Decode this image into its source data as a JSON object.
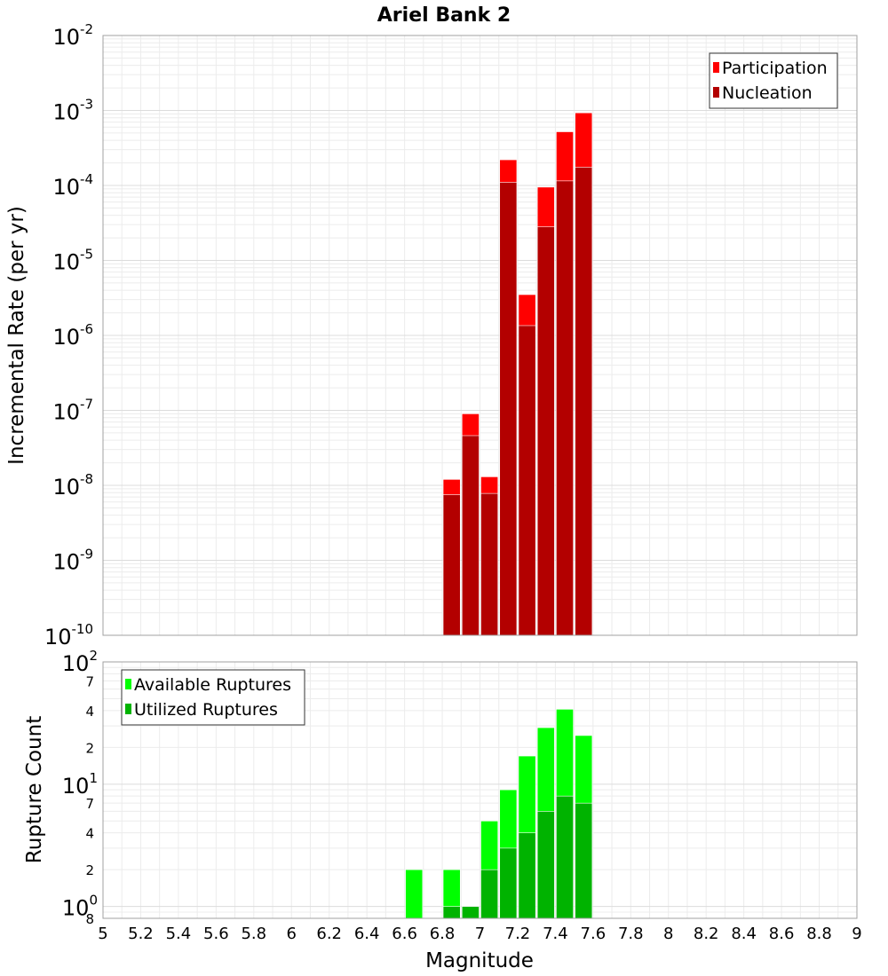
{
  "chart_data": [
    {
      "type": "bar",
      "title": "Ariel Bank 2",
      "xlabel": "",
      "ylabel": "Incremental Rate (per yr)",
      "yscale": "log",
      "ylim": [
        1e-10,
        0.01
      ],
      "xlim": [
        5,
        9
      ],
      "grid": true,
      "legend_position": "top-right",
      "y_ticks": [
        {
          "base": "10",
          "exp": "-10"
        },
        {
          "base": "10",
          "exp": "-9"
        },
        {
          "base": "10",
          "exp": "-8"
        },
        {
          "base": "10",
          "exp": "-7"
        },
        {
          "base": "10",
          "exp": "-6"
        },
        {
          "base": "10",
          "exp": "-5"
        },
        {
          "base": "10",
          "exp": "-4"
        },
        {
          "base": "10",
          "exp": "-3"
        },
        {
          "base": "10",
          "exp": "-2"
        }
      ],
      "bar_width": 0.1,
      "series": [
        {
          "name": "Participation",
          "color": "#ff0000",
          "x": [
            6.85,
            6.95,
            7.05,
            7.15,
            7.25,
            7.35,
            7.45,
            7.55
          ],
          "values": [
            1.2e-08,
            9e-08,
            1.3e-08,
            0.00022,
            3.5e-06,
            9.5e-05,
            0.00052,
            0.00093
          ]
        },
        {
          "name": "Nucleation",
          "color": "#b30000",
          "x": [
            6.85,
            6.95,
            7.05,
            7.15,
            7.25,
            7.35,
            7.45,
            7.55
          ],
          "values": [
            7.5e-09,
            4.6e-08,
            7.8e-09,
            0.00011,
            1.35e-06,
            2.8e-05,
            0.000115,
            0.000175
          ]
        }
      ]
    },
    {
      "type": "bar",
      "title": "",
      "xlabel": "Magnitude",
      "ylabel": "Rupture Count",
      "yscale": "log",
      "ylim": [
        0.8,
        100
      ],
      "xlim": [
        5,
        9
      ],
      "grid": true,
      "legend_position": "top-left",
      "x_ticks": [
        "5",
        "5.2",
        "5.4",
        "5.6",
        "5.8",
        "6",
        "6.2",
        "6.4",
        "6.6",
        "6.8",
        "7",
        "7.2",
        "7.4",
        "7.6",
        "7.8",
        "8",
        "8.2",
        "8.4",
        "8.6",
        "8.8",
        "9"
      ],
      "y_ticks": [
        {
          "base": "10",
          "exp": "2"
        },
        {
          "base": "10",
          "exp": "1"
        },
        {
          "base": "10",
          "exp": "0"
        }
      ],
      "y_minor_ticks": [
        {
          "label": "7",
          "value": 70
        },
        {
          "label": "4",
          "value": 40
        },
        {
          "label": "2",
          "value": 20
        },
        {
          "label": "7",
          "value": 7
        },
        {
          "label": "4",
          "value": 4
        },
        {
          "label": "2",
          "value": 2
        },
        {
          "label": "8",
          "value": 0.8
        }
      ],
      "bar_width": 0.1,
      "series": [
        {
          "name": "Available Ruptures",
          "color": "#00ff00",
          "x": [
            6.65,
            6.85,
            7.05,
            7.15,
            7.25,
            7.35,
            7.45,
            7.55
          ],
          "values": [
            2,
            2,
            5,
            9,
            17,
            29,
            41,
            25
          ]
        },
        {
          "name": "Utilized Ruptures",
          "color": "#00b300",
          "x": [
            6.85,
            6.95,
            7.05,
            7.15,
            7.25,
            7.35,
            7.45,
            7.55
          ],
          "values": [
            1,
            1,
            2,
            3,
            4,
            6,
            8,
            7
          ]
        }
      ]
    }
  ]
}
